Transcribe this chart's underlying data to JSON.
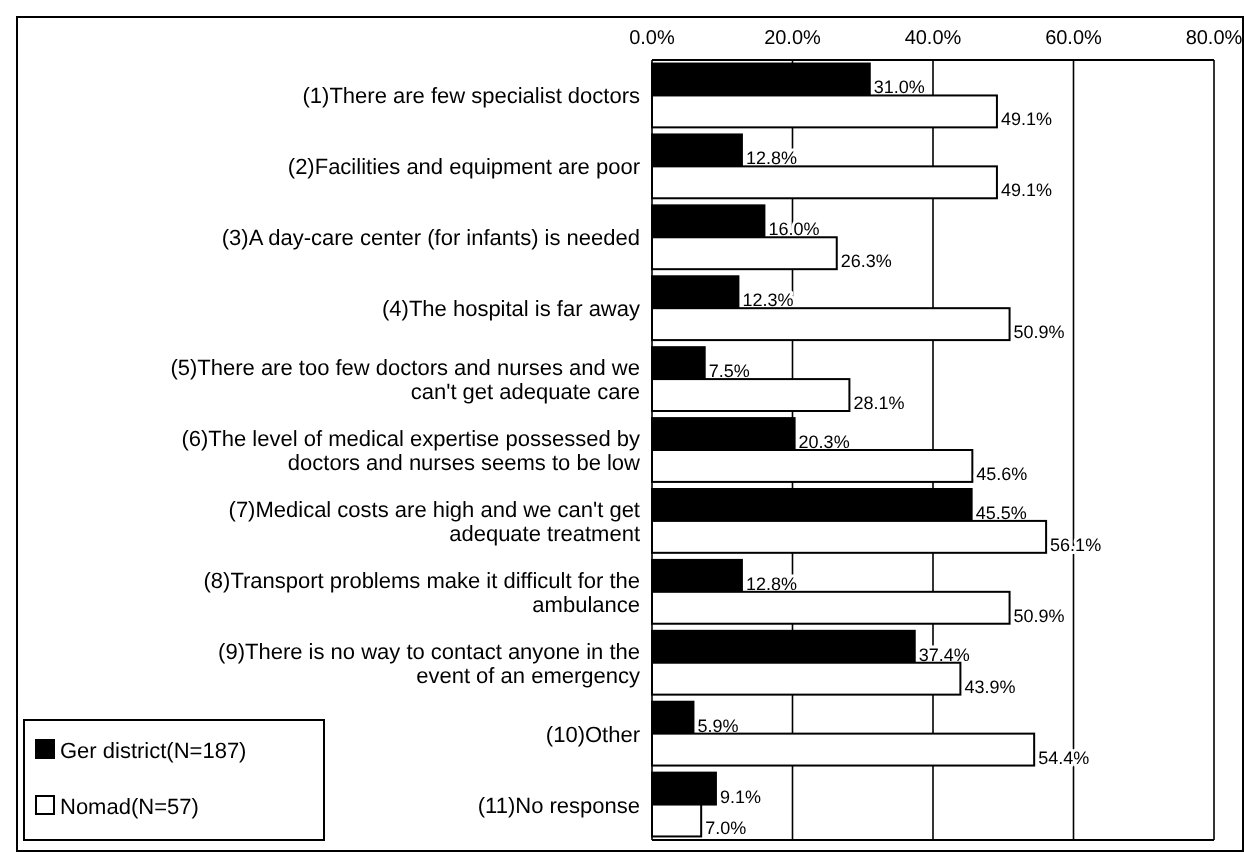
{
  "chart_data": {
    "type": "bar",
    "orientation": "horizontal",
    "categories": [
      "(1)There are few specialist doctors",
      "(2)Facilities and equipment are poor",
      "(3)A day-care center (for infants) is needed",
      "(4)The hospital is far away",
      "(5)There are too few doctors and nurses and we can't get adequate care",
      "(6)The level of medical expertise possessed by doctors and nurses seems to be low",
      "(7)Medical costs are high and we can't get adequate treatment",
      "(8)Transport problems make it difficult for the ambulance",
      "(9)There is no way to contact anyone in the event of an emergency",
      "(10)Other",
      "(11)No response"
    ],
    "series": [
      {
        "name": "Ger district(N=187)",
        "color": "#000000",
        "values": [
          31.0,
          12.8,
          16.0,
          12.3,
          7.5,
          20.3,
          45.5,
          12.8,
          37.4,
          5.9,
          9.1
        ],
        "value_labels": [
          "31.0%",
          "12.8%",
          "16.0%",
          "12.3%",
          "7.5%",
          "20.3%",
          "45.5%",
          "12.8%",
          "37.4%",
          "5.9%",
          "9.1%"
        ]
      },
      {
        "name": "Nomad(N=57)",
        "color": "#ffffff",
        "values": [
          49.1,
          49.1,
          26.3,
          50.9,
          28.1,
          45.6,
          56.1,
          50.9,
          43.9,
          54.4,
          7.0
        ],
        "value_labels": [
          "49.1%",
          "49.1%",
          "26.3%",
          "50.9%",
          "28.1%",
          "45.6%",
          "56.1%",
          "50.9%",
          "43.9%",
          "54.4%",
          "7.0%"
        ]
      }
    ],
    "xlim": [
      0,
      80
    ],
    "xticks": [
      {
        "value": 0,
        "label": "0.0%"
      },
      {
        "value": 20,
        "label": "20.0%"
      },
      {
        "value": 40,
        "label": "40.0%"
      },
      {
        "value": 60,
        "label": "60.0%"
      },
      {
        "value": 80,
        "label": "80.0%"
      }
    ],
    "grid": "x",
    "legend": "bottom left"
  }
}
